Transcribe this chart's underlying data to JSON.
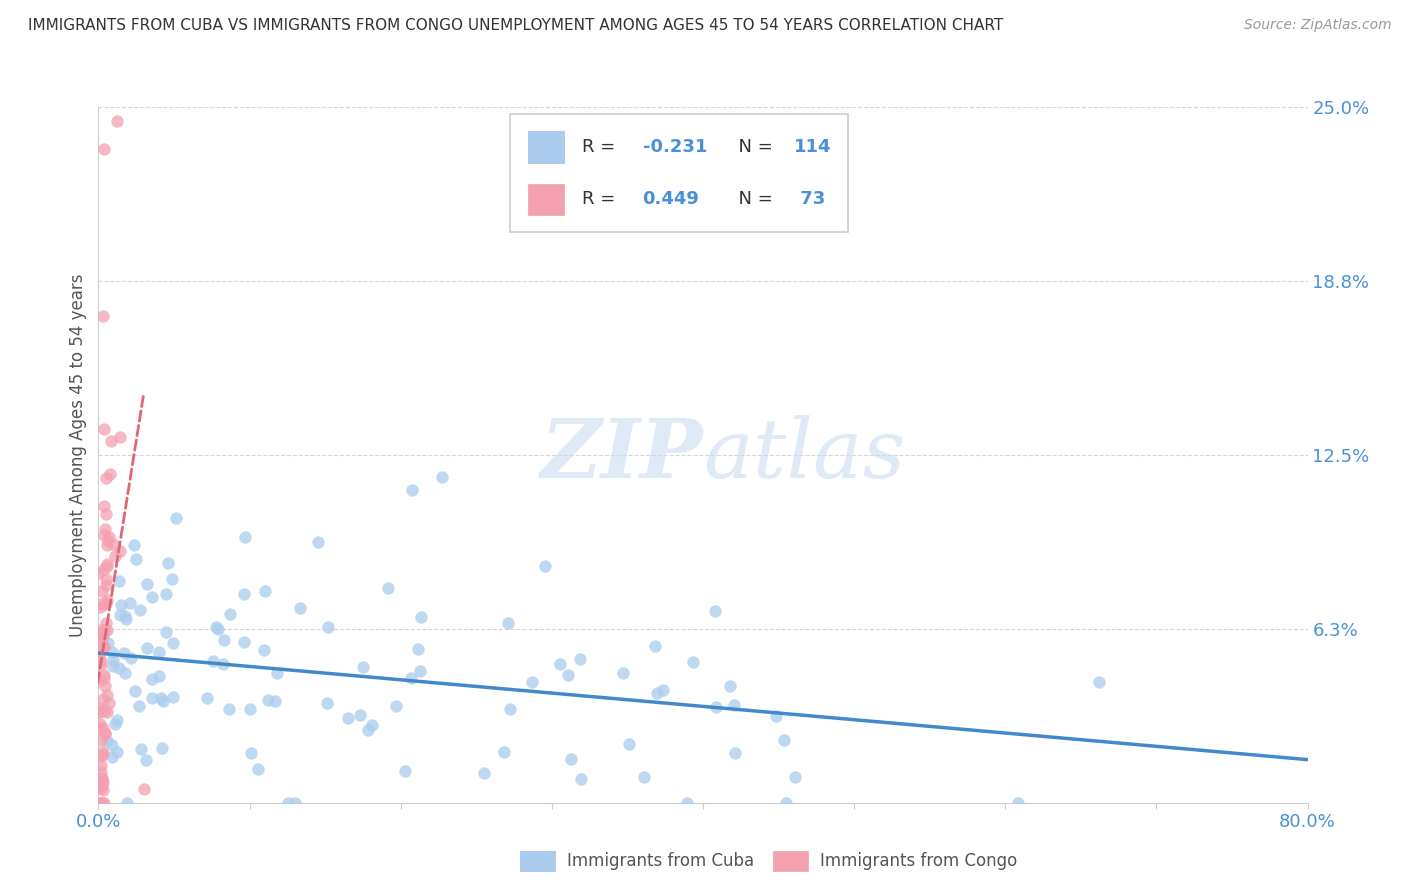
{
  "title": "IMMIGRANTS FROM CUBA VS IMMIGRANTS FROM CONGO UNEMPLOYMENT AMONG AGES 45 TO 54 YEARS CORRELATION CHART",
  "source": "Source: ZipAtlas.com",
  "ylabel": "Unemployment Among Ages 45 to 54 years",
  "xlim": [
    0.0,
    0.8
  ],
  "ylim": [
    0.0,
    0.25
  ],
  "yticks": [
    0.0,
    0.0625,
    0.125,
    0.1875,
    0.25
  ],
  "ytick_labels": [
    "",
    "6.3%",
    "12.5%",
    "18.8%",
    "25.0%"
  ],
  "xticks": [
    0.0,
    0.1,
    0.2,
    0.3,
    0.4,
    0.5,
    0.6,
    0.7,
    0.8
  ],
  "xtick_labels": [
    "0.0%",
    "",
    "",
    "",
    "",
    "",
    "",
    "",
    "80.0%"
  ],
  "cuba_color": "#aaccee",
  "congo_color": "#f4a0b0",
  "cuba_trend_color": "#4488cc",
  "congo_trend_color": "#dd6677",
  "cuba_R": -0.231,
  "cuba_N": 114,
  "congo_R": 0.449,
  "congo_N": 73,
  "watermark_zip": "ZIP",
  "watermark_atlas": "atlas",
  "legend_labels": [
    "Immigrants from Cuba",
    "Immigrants from Congo"
  ],
  "background_color": "#ffffff",
  "grid_color": "#cccccc",
  "axis_label_color": "#4a90d9",
  "title_color": "#333333",
  "blue_text_color": "#4a90d9"
}
